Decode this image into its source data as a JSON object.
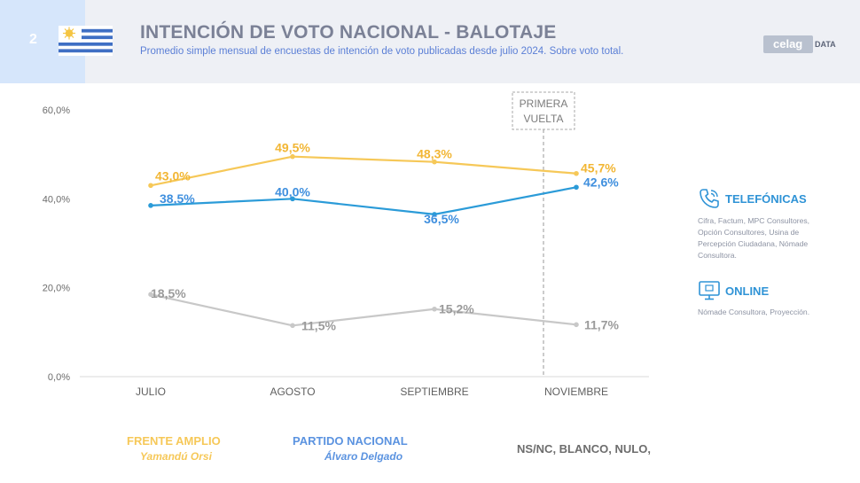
{
  "header": {
    "slide_number": "2",
    "title": "INTENCIÓN DE VOTO NACIONAL - BALOTAJE",
    "subtitle": "Promedio simple mensual de encuestas de intención de voto publicadas desde julio 2024. Sobre voto total.",
    "logo_brand": "celag",
    "logo_suffix": "DATA"
  },
  "annotation": {
    "line1": "PRIMERA",
    "line2": "VUELTA"
  },
  "legend": {
    "frente_amplio": {
      "title": "FRENTE AMPLIO",
      "candidate": "Yamandú Orsi",
      "color": "#f6c858"
    },
    "partido_nacional": {
      "title": "PARTIDO NACIONAL",
      "candidate": "Álvaro Delgado",
      "color": "#2b9bd8"
    },
    "otros": {
      "title": "NS/NC, BLANCO, NULO,",
      "color": "#c8c8c8"
    }
  },
  "sources": {
    "telefonicas": {
      "title": "TELEFÓNICAS",
      "text": "Cifra, Factum, MPC Consultores, Opción Consultores, Usina de Percepción Ciudadana, Nómade Consultora.",
      "icon": "phone-icon"
    },
    "online": {
      "title": "ONLINE",
      "text": "Nómade Consultora, Proyección.",
      "icon": "monitor-icon"
    }
  },
  "chart_data": {
    "type": "line",
    "categories": [
      "JULIO",
      "AGOSTO",
      "SEPTIEMBRE",
      "NOVIEMBRE"
    ],
    "y_ticks": [
      "0,0%",
      "20,0%",
      "40,0%",
      "60,0%"
    ],
    "ylim": [
      0,
      60
    ],
    "grid": false,
    "series": [
      {
        "name": "FRENTE AMPLIO",
        "values": [
          43.0,
          49.5,
          48.3,
          45.7
        ],
        "labels": [
          "43,0%",
          "49,5%",
          "48,3%",
          "45,7%"
        ],
        "color": "#f6c858"
      },
      {
        "name": "PARTIDO NACIONAL",
        "values": [
          38.5,
          40.0,
          36.5,
          42.6
        ],
        "labels": [
          "38,5%",
          "40,0%",
          "36,5%",
          "42,6%"
        ],
        "color": "#2b9bd8"
      },
      {
        "name": "NS/NC, BLANCO, NULO,",
        "values": [
          18.5,
          11.5,
          15.2,
          11.7
        ],
        "labels": [
          "18,5%",
          "11,5%",
          "15,2%",
          "11,7%"
        ],
        "color": "#c8c8c8"
      }
    ]
  }
}
